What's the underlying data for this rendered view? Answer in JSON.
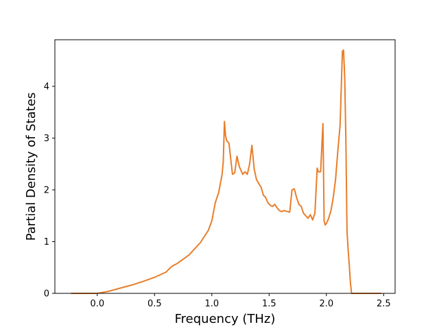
{
  "chart_data": {
    "type": "line",
    "xlabel": "Frequency (THz)",
    "ylabel": "Partial Density of States",
    "xlim": [
      -0.37,
      2.6
    ],
    "ylim": [
      0,
      4.9
    ],
    "x_ticks": [
      0.0,
      0.5,
      1.0,
      1.5,
      2.0,
      2.5
    ],
    "x_tick_labels": [
      "0.0",
      "0.5",
      "1.0",
      "1.5",
      "2.0",
      "2.5"
    ],
    "y_ticks": [
      0,
      1,
      2,
      3,
      4
    ],
    "y_tick_labels": [
      "0",
      "1",
      "2",
      "3",
      "4"
    ],
    "grid": false,
    "line_color": "#e87d2a",
    "series": [
      {
        "x": [
          -0.23,
          -0.1,
          0.0,
          0.1,
          0.2,
          0.3,
          0.4,
          0.5,
          0.6,
          0.65,
          0.7,
          0.8,
          0.9,
          0.97,
          1.0,
          1.03,
          1.06,
          1.09,
          1.1,
          1.11,
          1.12,
          1.13,
          1.15,
          1.18,
          1.2,
          1.22,
          1.24,
          1.25,
          1.27,
          1.29,
          1.31,
          1.33,
          1.35,
          1.37,
          1.39,
          1.41,
          1.43,
          1.45,
          1.47,
          1.49,
          1.51,
          1.53,
          1.55,
          1.57,
          1.59,
          1.61,
          1.63,
          1.66,
          1.68,
          1.7,
          1.72,
          1.74,
          1.76,
          1.78,
          1.8,
          1.82,
          1.84,
          1.86,
          1.88,
          1.9,
          1.92,
          1.93,
          1.95,
          1.97,
          1.98,
          1.99,
          2.0,
          2.02,
          2.04,
          2.06,
          2.08,
          2.1,
          2.12,
          2.14,
          2.15,
          2.16,
          2.17,
          2.18,
          2.19,
          2.2,
          2.21,
          2.22,
          2.23,
          2.24,
          2.26,
          2.35,
          2.48
        ],
        "y": [
          0,
          0,
          0,
          0.04,
          0.1,
          0.16,
          0.23,
          0.31,
          0.41,
          0.52,
          0.58,
          0.74,
          0.98,
          1.22,
          1.4,
          1.75,
          1.95,
          2.3,
          2.55,
          3.32,
          3.05,
          2.95,
          2.9,
          2.3,
          2.33,
          2.65,
          2.45,
          2.4,
          2.3,
          2.35,
          2.3,
          2.5,
          2.86,
          2.4,
          2.2,
          2.12,
          2.05,
          1.9,
          1.85,
          1.75,
          1.7,
          1.68,
          1.72,
          1.65,
          1.6,
          1.58,
          1.6,
          1.58,
          1.57,
          2.0,
          2.02,
          1.85,
          1.72,
          1.68,
          1.55,
          1.5,
          1.45,
          1.52,
          1.42,
          1.55,
          2.42,
          2.35,
          2.35,
          3.28,
          1.4,
          1.32,
          1.35,
          1.45,
          1.6,
          1.85,
          2.2,
          2.75,
          3.25,
          4.68,
          4.7,
          4.2,
          3.0,
          1.2,
          0.85,
          0.55,
          0.2,
          0,
          0,
          0,
          0,
          0,
          0
        ]
      }
    ]
  }
}
